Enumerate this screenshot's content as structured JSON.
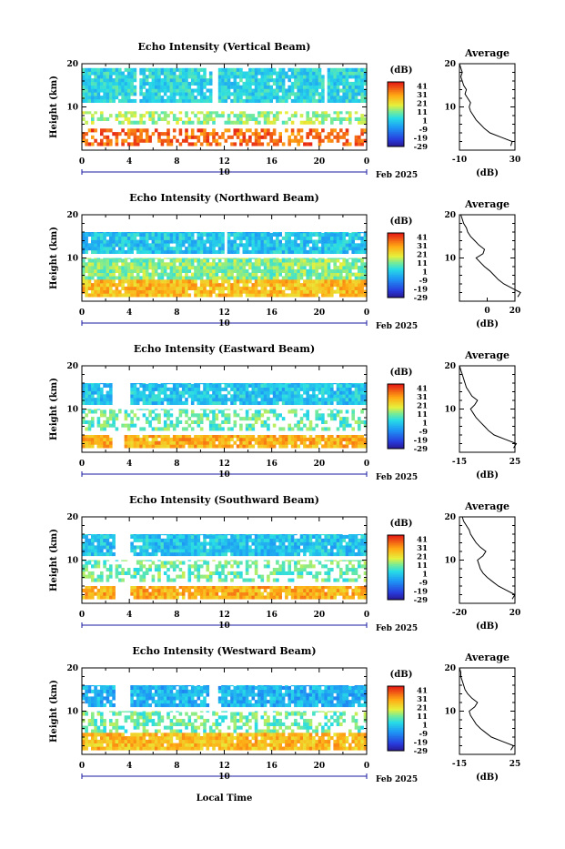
{
  "figure": {
    "xlabel": "Local Time",
    "date_label": "Feb 2025",
    "day_label": "10",
    "colorbar_unit": "(dB)",
    "avg_title": "Average",
    "avg_xlabel": "(dB)",
    "ylabel": "Height (km)"
  },
  "colorbar": {
    "ticks": [
      "41",
      "31",
      "21",
      "11",
      "1",
      "-9",
      "-19",
      "-29"
    ],
    "min": -29,
    "max": 46
  },
  "chart_data": [
    {
      "type": "heatmap",
      "title": "Echo Intensity (Vertical Beam)",
      "xlabel": "",
      "ylabel": "Height (km)",
      "x_ticks": [
        "0",
        "4",
        "8",
        "12",
        "16",
        "20",
        "0"
      ],
      "y_ticks": [
        "20",
        "10"
      ],
      "xlim": [
        0,
        24
      ],
      "ylim": [
        0,
        20
      ],
      "layers": [
        {
          "h0": 11,
          "h1": 19,
          "value": 4,
          "gaps": [
            [
              4.7,
              4.9
            ],
            [
              11.1,
              11.4
            ],
            [
              20.5,
              20.6
            ]
          ]
        },
        {
          "h0": 6,
          "h1": 9,
          "value": 15,
          "sparse": true
        },
        {
          "h0": 1,
          "h1": 5,
          "value": 38,
          "sparse": true
        }
      ],
      "average": {
        "xlim": [
          -10,
          30
        ],
        "x_ticks": [
          "-10",
          "30"
        ],
        "heights": [
          1,
          2,
          3,
          4,
          5,
          6,
          7,
          8,
          9,
          10,
          11,
          12,
          13,
          14,
          15,
          16,
          17,
          18,
          19,
          20
        ],
        "values": [
          27,
          28,
          20,
          12,
          8,
          5,
          2,
          0,
          -2,
          -3,
          -2,
          -4,
          -6,
          -5,
          -7,
          -8,
          -9,
          -8,
          -9,
          -10
        ]
      }
    },
    {
      "type": "heatmap",
      "title": "Echo Intensity (Northward Beam)",
      "xlabel": "",
      "ylabel": "Height (km)",
      "x_ticks": [
        "0",
        "4",
        "8",
        "12",
        "16",
        "20",
        "0"
      ],
      "y_ticks": [
        "20",
        "10"
      ],
      "xlim": [
        0,
        24
      ],
      "ylim": [
        0,
        20
      ],
      "layers": [
        {
          "h0": 11,
          "h1": 16,
          "value": 1,
          "gaps": [
            [
              12.0,
              12.2
            ]
          ]
        },
        {
          "h0": 5,
          "h1": 10,
          "value": 13,
          "gaps": []
        },
        {
          "h0": 1,
          "h1": 5,
          "value": 28,
          "gaps": []
        }
      ],
      "average": {
        "xlim": [
          -20,
          20
        ],
        "x_ticks": [
          "0",
          "20"
        ],
        "heights": [
          1,
          2,
          3,
          4,
          5,
          6,
          7,
          8,
          9,
          10,
          11,
          12,
          13,
          14,
          15,
          16,
          17,
          18,
          19,
          20
        ],
        "values": [
          22,
          24,
          18,
          12,
          8,
          5,
          2,
          -2,
          -5,
          -8,
          -3,
          -2,
          -6,
          -9,
          -12,
          -14,
          -15,
          -17,
          -18,
          -19
        ]
      }
    },
    {
      "type": "heatmap",
      "title": "Echo Intensity (Eastward Beam)",
      "xlabel": "",
      "ylabel": "Height (km)",
      "x_ticks": [
        "0",
        "4",
        "8",
        "12",
        "16",
        "20",
        "0"
      ],
      "y_ticks": [
        "20",
        "10"
      ],
      "xlim": [
        0,
        24
      ],
      "ylim": [
        0,
        20
      ],
      "layers": [
        {
          "h0": 11,
          "h1": 16,
          "value": 1,
          "gaps": [
            [
              2.6,
              4.0
            ]
          ]
        },
        {
          "h0": 5,
          "h1": 10,
          "value": 10,
          "sparse": true
        },
        {
          "h0": 1,
          "h1": 4,
          "value": 30,
          "gaps": [
            [
              2.6,
              3.5
            ]
          ]
        }
      ],
      "average": {
        "xlim": [
          -15,
          25
        ],
        "x_ticks": [
          "-15",
          "25"
        ],
        "heights": [
          1,
          2,
          3,
          4,
          5,
          6,
          7,
          8,
          9,
          10,
          11,
          12,
          13,
          14,
          15,
          16,
          17,
          18,
          19,
          20
        ],
        "values": [
          24,
          26,
          18,
          10,
          6,
          3,
          0,
          -3,
          -5,
          -7,
          -4,
          -2,
          -6,
          -8,
          -10,
          -11,
          -12,
          -13,
          -14,
          -15
        ]
      }
    },
    {
      "type": "heatmap",
      "title": "Echo Intensity (Southward Beam)",
      "xlabel": "",
      "ylabel": "Height (km)",
      "x_ticks": [
        "0",
        "4",
        "8",
        "12",
        "16",
        "20",
        "0"
      ],
      "y_ticks": [
        "20",
        "10"
      ],
      "xlim": [
        0,
        24
      ],
      "ylim": [
        0,
        20
      ],
      "layers": [
        {
          "h0": 11,
          "h1": 16,
          "value": 1,
          "gaps": [
            [
              2.8,
              4.2
            ]
          ]
        },
        {
          "h0": 5,
          "h1": 10,
          "value": 11,
          "sparse": true
        },
        {
          "h0": 1,
          "h1": 4,
          "value": 30,
          "gaps": [
            [
              2.8,
              4.2
            ]
          ]
        }
      ],
      "average": {
        "xlim": [
          -20,
          20
        ],
        "x_ticks": [
          "-20",
          "20"
        ],
        "heights": [
          1,
          2,
          3,
          4,
          5,
          6,
          7,
          8,
          9,
          10,
          11,
          12,
          13,
          14,
          15,
          16,
          17,
          18,
          19,
          20
        ],
        "values": [
          18,
          20,
          14,
          8,
          4,
          0,
          -3,
          -5,
          -6,
          -7,
          -3,
          -1,
          -5,
          -8,
          -10,
          -12,
          -13,
          -15,
          -17,
          -18
        ]
      }
    },
    {
      "type": "heatmap",
      "title": "Echo Intensity (Westward Beam)",
      "xlabel": "Local Time",
      "ylabel": "Height (km)",
      "x_ticks": [
        "0",
        "4",
        "8",
        "12",
        "16",
        "20",
        "0"
      ],
      "y_ticks": [
        "20",
        "10"
      ],
      "xlim": [
        0,
        24
      ],
      "ylim": [
        0,
        20
      ],
      "layers": [
        {
          "h0": 11,
          "h1": 16,
          "value": -2,
          "gaps": [
            [
              2.9,
              4.0
            ],
            [
              10.6,
              11.6
            ]
          ]
        },
        {
          "h0": 5,
          "h1": 10,
          "value": 11,
          "sparse": true
        },
        {
          "h0": 1,
          "h1": 5,
          "value": 28,
          "gaps": []
        }
      ],
      "average": {
        "xlim": [
          -15,
          25
        ],
        "x_ticks": [
          "-15",
          "25"
        ],
        "heights": [
          1,
          2,
          3,
          4,
          5,
          6,
          7,
          8,
          9,
          10,
          11,
          12,
          13,
          14,
          15,
          16,
          17,
          18,
          19,
          20
        ],
        "values": [
          22,
          24,
          16,
          8,
          4,
          0,
          -3,
          -5,
          -7,
          -8,
          -4,
          -2,
          -6,
          -9,
          -11,
          -12,
          -13,
          -14,
          -14,
          -15
        ]
      }
    }
  ]
}
